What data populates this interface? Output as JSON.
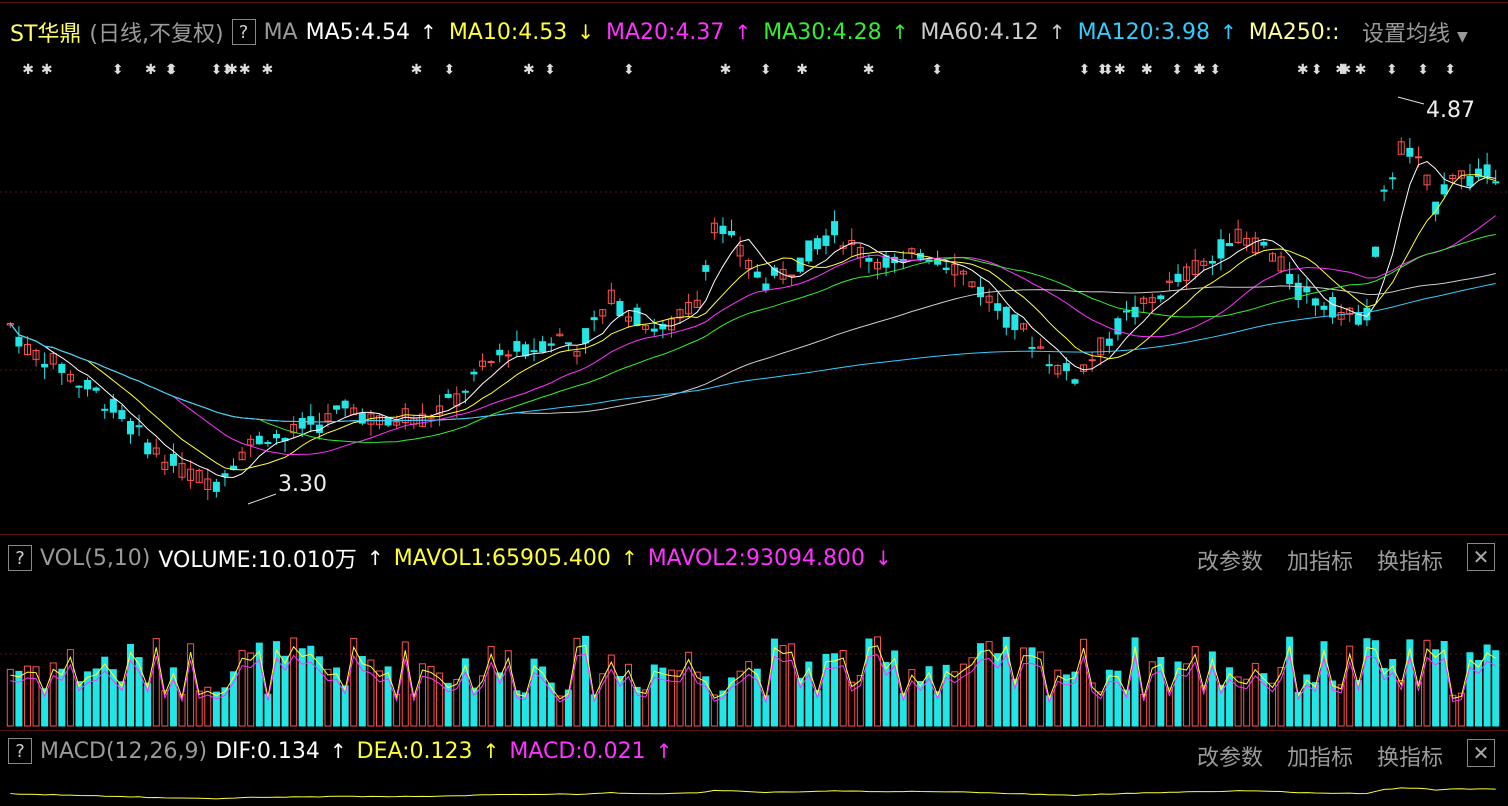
{
  "header": {
    "stock_name": "ST华鼎",
    "mode": "(日线,不复权)",
    "help": "?",
    "ma_label": "MA",
    "ma_items": [
      {
        "text": "MA5:4.54",
        "arrow": "↑",
        "color": "#ffffff"
      },
      {
        "text": "MA10:4.53",
        "arrow": "↓",
        "color": "#ffff33"
      },
      {
        "text": "MA20:4.37",
        "arrow": "↑",
        "color": "#ff33ff"
      },
      {
        "text": "MA30:4.28",
        "arrow": "↑",
        "color": "#33ee33"
      },
      {
        "text": "MA60:4.12",
        "arrow": "↑",
        "color": "#cccccc"
      },
      {
        "text": "MA120:3.98",
        "arrow": "↑",
        "color": "#33ccff"
      },
      {
        "text": "MA250::",
        "arrow": "",
        "color": "#ffff99"
      }
    ],
    "settings": "设置均线"
  },
  "annotations": {
    "high": "4.87",
    "low": "3.30"
  },
  "vol_panel": {
    "help": "?",
    "name": "VOL(5,10)",
    "volume": "VOLUME:10.010万",
    "mavol1": "MAVOL1:65905.400",
    "mavol2": "MAVOL2:93094.800",
    "arrow_up": "↑",
    "arrow_down": "↓"
  },
  "macd_panel": {
    "help": "?",
    "name": "MACD(12,26,9)",
    "dif": "DIF:0.134",
    "dea": "DEA:0.123",
    "macd": "MACD:0.021",
    "arrow_up": "↑"
  },
  "buttons": {
    "change_param": "改参数",
    "add_indicator": "加指标",
    "switch_indicator": "换指标",
    "close": "✕"
  },
  "colors": {
    "up": "#ff5050",
    "down": "#22e6e6",
    "ma5": "#ffffff",
    "ma10": "#ffff33",
    "ma20": "#ff33ff",
    "ma30": "#33ee33",
    "ma60": "#cccccc",
    "ma120": "#33ccff",
    "ma250": "#ffff99"
  },
  "chart_data": {
    "type": "candlestick",
    "price_range": [
      3.15,
      5.0
    ],
    "high": 4.87,
    "low": 3.3,
    "ma_latest": {
      "MA5": 4.54,
      "MA10": 4.53,
      "MA20": 4.37,
      "MA30": 4.28,
      "MA60": 4.12,
      "MA120": 3.98
    },
    "volume_latest_wan": 10.01,
    "mavol1": 65905.4,
    "mavol2": 93094.8,
    "dif": 0.134,
    "dea": 0.123,
    "macd": 0.021,
    "close_path": [
      3.95,
      3.85,
      3.82,
      3.78,
      3.72,
      3.68,
      3.62,
      3.55,
      3.48,
      3.42,
      3.38,
      3.35,
      3.33,
      3.42,
      3.48,
      3.52,
      3.5,
      3.55,
      3.56,
      3.6,
      3.62,
      3.58,
      3.55,
      3.6,
      3.58,
      3.62,
      3.66,
      3.74,
      3.8,
      3.86,
      3.84,
      3.88,
      3.9,
      3.86,
      3.95,
      4.05,
      4.0,
      3.96,
      3.92,
      3.98,
      4.05,
      4.35,
      4.28,
      4.18,
      4.12,
      4.15,
      4.2,
      4.28,
      4.32,
      4.26,
      4.22,
      4.2,
      4.18,
      4.24,
      4.22,
      4.18,
      4.12,
      4.05,
      3.98,
      3.92,
      3.86,
      3.78,
      3.75,
      3.82,
      3.9,
      3.98,
      4.02,
      4.08,
      4.12,
      4.18,
      4.2,
      4.3,
      4.28,
      4.26,
      4.18,
      4.08,
      4.05,
      4.02,
      3.98,
      4.0,
      4.45,
      4.65,
      4.58,
      4.42,
      4.56,
      4.52,
      4.54,
      4.56
    ]
  }
}
